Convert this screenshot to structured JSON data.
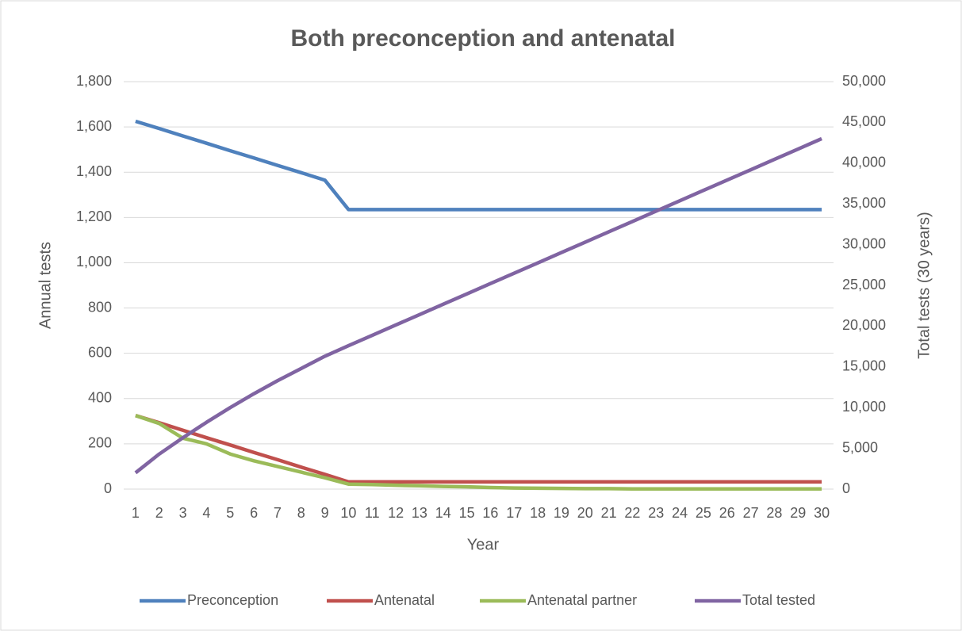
{
  "chart_data": {
    "type": "line",
    "title": "Both preconception and antenatal",
    "xlabel": "Year",
    "ylabel": "Annual tests",
    "y2label": "Total tests (30 years)",
    "categories": [
      "1",
      "2",
      "3",
      "4",
      "5",
      "6",
      "7",
      "8",
      "9",
      "10",
      "11",
      "12",
      "13",
      "14",
      "15",
      "16",
      "17",
      "18",
      "19",
      "20",
      "21",
      "22",
      "23",
      "24",
      "25",
      "26",
      "27",
      "28",
      "29",
      "30"
    ],
    "series": [
      {
        "name": "Preconception",
        "color": "#4f81bd",
        "values": [
          1625,
          1593,
          1560,
          1528,
          1495,
          1463,
          1430,
          1398,
          1365,
          1235,
          1235,
          1235,
          1235,
          1235,
          1235,
          1235,
          1235,
          1235,
          1235,
          1235,
          1235,
          1235,
          1235,
          1235,
          1235,
          1235,
          1235,
          1235,
          1235,
          1235
        ]
      },
      {
        "name": "Antenatal",
        "color": "#c0504d",
        "values": [
          325,
          293,
          260,
          227,
          195,
          162,
          130,
          97,
          65,
          32,
          32,
          32,
          32,
          32,
          32,
          32,
          32,
          32,
          32,
          32,
          32,
          32,
          32,
          32,
          32,
          32,
          32,
          32,
          32,
          32
        ]
      },
      {
        "name": "Antenatal partner",
        "color": "#9bbb59",
        "values": [
          325,
          290,
          225,
          200,
          155,
          125,
          100,
          75,
          50,
          22,
          20,
          17,
          15,
          12,
          10,
          7,
          5,
          4,
          3,
          2,
          2,
          1,
          1,
          1,
          1,
          1,
          1,
          1,
          1,
          1
        ]
      },
      {
        "name": "Total tested",
        "color": "#8064a2",
        "axis": "y2",
        "values": [
          2000,
          4300,
          6300,
          8200,
          10000,
          11700,
          13300,
          14800,
          16300,
          17600,
          18870,
          20140,
          21410,
          22680,
          23950,
          25220,
          26490,
          27760,
          29030,
          30300,
          31570,
          32840,
          34110,
          35380,
          36650,
          37920,
          39190,
          40460,
          41730,
          43000
        ]
      }
    ],
    "ylim": [
      0,
      1800
    ],
    "yticks": [
      0,
      200,
      400,
      600,
      800,
      {
        "value": 1000,
        "label": "1,000"
      },
      {
        "value": 1200,
        "label": "1,200"
      },
      {
        "value": 1400,
        "label": "1,400"
      },
      {
        "value": 1600,
        "label": "1,600"
      },
      {
        "value": 1800,
        "label": "1,800"
      }
    ],
    "y2lim": [
      0,
      50000
    ],
    "y2ticks": [
      0,
      {
        "value": 5000,
        "label": "5,000"
      },
      {
        "value": 10000,
        "label": "10,000"
      },
      {
        "value": 15000,
        "label": "15,000"
      },
      {
        "value": 20000,
        "label": "20,000"
      },
      {
        "value": 25000,
        "label": "25,000"
      },
      {
        "value": 30000,
        "label": "30,000"
      },
      {
        "value": 35000,
        "label": "35,000"
      },
      {
        "value": 40000,
        "label": "40,000"
      },
      {
        "value": 45000,
        "label": "45,000"
      },
      {
        "value": 50000,
        "label": "50,000"
      }
    ],
    "grid": true,
    "legend": "bottom"
  }
}
